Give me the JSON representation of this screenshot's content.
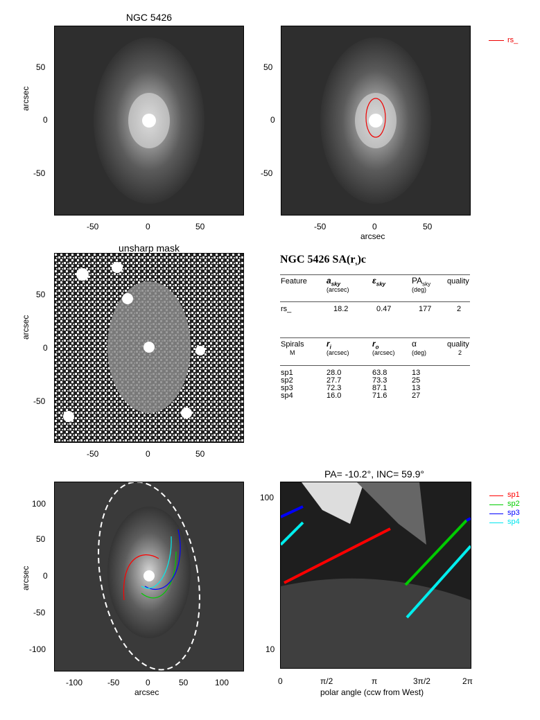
{
  "panel1": {
    "title": "NGC 5426",
    "ylabel": "arcsec",
    "xticks": [
      "-50",
      "0",
      "50"
    ],
    "yticks": [
      "50",
      "0",
      "-50"
    ]
  },
  "panel2": {
    "xlabel": "arcsec",
    "xticks": [
      "-50",
      "0",
      "50"
    ],
    "yticks": [
      "50",
      "0",
      "-50"
    ],
    "legend": "rs_"
  },
  "panel3": {
    "title": "unsharp mask",
    "ylabel": "arcsec",
    "xticks": [
      "-50",
      "0",
      "50"
    ],
    "yticks": [
      "50",
      "0",
      "-50"
    ]
  },
  "panel5": {
    "ylabel": "arcsec",
    "xlabel": "arcsec",
    "xticks": [
      "-100",
      "-50",
      "0",
      "50",
      "100"
    ],
    "yticks": [
      "100",
      "50",
      "0",
      "-50",
      "-100"
    ]
  },
  "panel6": {
    "title": "PA= -10.2°, INC=  59.9°",
    "xlabel": "polar angle (ccw from West)",
    "xticks": [
      "0",
      "π/2",
      "π",
      "3π/2",
      "2π"
    ],
    "yticks": [
      "100",
      "10"
    ],
    "legend": [
      {
        "name": "sp1",
        "color": "#ff0000"
      },
      {
        "name": "sp2",
        "color": "#00cc00"
      },
      {
        "name": "sp3",
        "color": "#0000ff"
      },
      {
        "name": "sp4",
        "color": "#00e5ee"
      }
    ]
  },
  "table": {
    "header": "NGC 5426  SA(r",
    "header_sub": "s",
    "header_end": ")c",
    "feature_cols": [
      "Feature",
      "a",
      "ε",
      "PA",
      "quality"
    ],
    "feature_subs": [
      "sky",
      "sky",
      "sky"
    ],
    "feature_units": [
      "(arcsec)",
      "(deg)"
    ],
    "feature_row": [
      "rs_",
      "18.2",
      "0.47",
      "177",
      "2"
    ],
    "spiral_cols": [
      "Spirals",
      "r",
      "r",
      "α",
      "quality"
    ],
    "spiral_subs": [
      "M",
      "i",
      "o",
      "2"
    ],
    "spiral_units": [
      "(arcsec)",
      "(arcsec)",
      "(deg)"
    ],
    "spirals": [
      [
        "sp1",
        "28.0",
        "63.8",
        "13"
      ],
      [
        "sp2",
        "27.7",
        "73.3",
        "25"
      ],
      [
        "sp3",
        "72.3",
        "87.1",
        "13"
      ],
      [
        "sp4",
        "16.0",
        "71.6",
        "27"
      ]
    ]
  }
}
